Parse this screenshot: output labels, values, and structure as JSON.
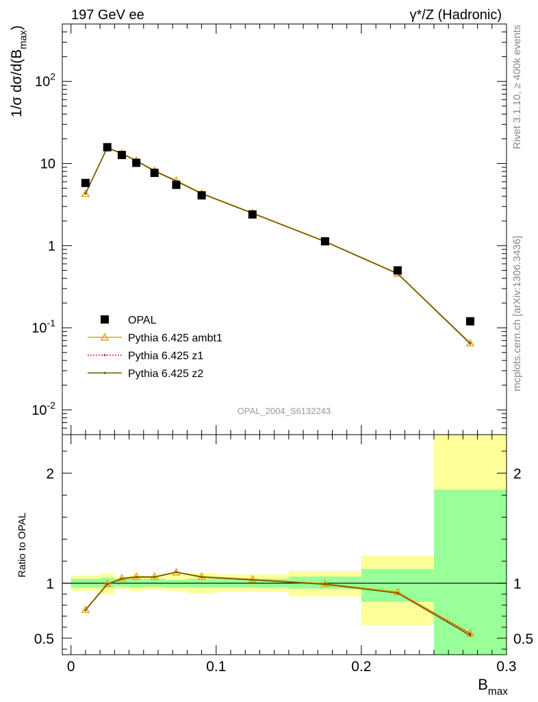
{
  "header": {
    "left": "197 GeV ee",
    "right": "γ*/Z (Hadronic)"
  },
  "side_labels": {
    "rivet": "Rivet 3.1.10, ≥ 400k events",
    "mcplots": "mcplots.cern.ch [arXiv:1306.3436]"
  },
  "chart_data": [
    {
      "type": "line",
      "panel": "main",
      "analysis_label": "OPAL_2004_S6132243",
      "ylabel": "1/σ dσ/d(B_max)",
      "yscale": "log",
      "ylim": [
        0.005,
        500
      ],
      "xlim": [
        -0.006,
        0.3
      ],
      "ytick_labels": [
        "10^-2",
        "10^-1",
        "1",
        "10",
        "10^2"
      ],
      "x": [
        0.01,
        0.025,
        0.035,
        0.045,
        0.0575,
        0.0725,
        0.09,
        0.125,
        0.175,
        0.225,
        0.275
      ],
      "series": [
        {
          "name": "OPAL",
          "marker": "square",
          "color": "#000000",
          "values": [
            5.8,
            15.8,
            12.7,
            10.2,
            7.7,
            5.5,
            4.1,
            2.4,
            1.13,
            0.5,
            0.12
          ]
        },
        {
          "name": "Pythia 6.425 ambt1",
          "marker": "triangle",
          "color": "#e8a000",
          "values": [
            4.3,
            15.7,
            13.3,
            10.9,
            8.2,
            6.2,
            4.35,
            2.5,
            1.13,
            0.46,
            0.065
          ]
        },
        {
          "name": "Pythia 6.425 z1",
          "marker": "dot",
          "line": "dotted",
          "color": "#e02020",
          "values": [
            4.3,
            15.6,
            13.2,
            10.8,
            8.1,
            6.1,
            4.3,
            2.48,
            1.12,
            0.455,
            0.065
          ]
        },
        {
          "name": "Pythia 6.425 z2",
          "marker": "dot",
          "color": "#6b5d00",
          "values": [
            4.3,
            15.6,
            13.2,
            10.8,
            8.1,
            6.1,
            4.3,
            2.48,
            1.12,
            0.455,
            0.064
          ]
        }
      ]
    },
    {
      "type": "line",
      "panel": "ratio",
      "ylabel": "Ratio to OPAL",
      "xlabel": "B_max",
      "ylim": [
        0.35,
        2.35
      ],
      "ytick_labels": [
        "0.5",
        "1",
        "2"
      ],
      "xtick_labels": [
        "0",
        "0.1",
        "0.2",
        "0.3"
      ],
      "bins": [
        [
          0.0,
          0.02
        ],
        [
          0.02,
          0.03
        ],
        [
          0.03,
          0.04
        ],
        [
          0.04,
          0.05
        ],
        [
          0.05,
          0.065
        ],
        [
          0.065,
          0.08
        ],
        [
          0.08,
          0.1
        ],
        [
          0.1,
          0.15
        ],
        [
          0.15,
          0.2
        ],
        [
          0.2,
          0.25
        ],
        [
          0.25,
          0.3
        ]
      ],
      "stat_band": [
        [
          0.96,
          1.04
        ],
        [
          0.96,
          1.05
        ],
        [
          0.97,
          1.04
        ],
        [
          0.96,
          1.04
        ],
        [
          0.97,
          1.04
        ],
        [
          0.96,
          1.03
        ],
        [
          0.96,
          1.04
        ],
        [
          0.96,
          1.04
        ],
        [
          0.95,
          1.06
        ],
        [
          0.83,
          1.13
        ],
        [
          0.35,
          1.85
        ]
      ],
      "total_band": [
        [
          0.93,
          1.07
        ],
        [
          0.9,
          1.09
        ],
        [
          0.95,
          1.06
        ],
        [
          0.93,
          1.07
        ],
        [
          0.94,
          1.06
        ],
        [
          0.93,
          1.08
        ],
        [
          0.91,
          1.09
        ],
        [
          0.92,
          1.08
        ],
        [
          0.88,
          1.11
        ],
        [
          0.62,
          1.25
        ],
        [
          0.35,
          2.35
        ]
      ],
      "band_colors": {
        "stat": "#99ff99",
        "total": "#ffff99"
      },
      "x": [
        0.01,
        0.025,
        0.035,
        0.045,
        0.0575,
        0.0725,
        0.09,
        0.125,
        0.175,
        0.225,
        0.275
      ],
      "series": [
        {
          "name": "Pythia 6.425 ambt1",
          "color": "#e8a000",
          "values": [
            0.76,
            0.995,
            1.045,
            1.06,
            1.06,
            1.1,
            1.06,
            1.035,
            0.995,
            0.92,
            0.545
          ]
        },
        {
          "name": "Pythia 6.425 z1",
          "color": "#e02020",
          "values": [
            0.755,
            0.99,
            1.04,
            1.055,
            1.055,
            1.1,
            1.055,
            1.03,
            0.99,
            0.91,
            0.54
          ]
        },
        {
          "name": "Pythia 6.425 z2",
          "color": "#6b5d00",
          "values": [
            0.755,
            0.99,
            1.04,
            1.055,
            1.055,
            1.1,
            1.055,
            1.03,
            0.99,
            0.91,
            0.525
          ]
        }
      ]
    }
  ]
}
